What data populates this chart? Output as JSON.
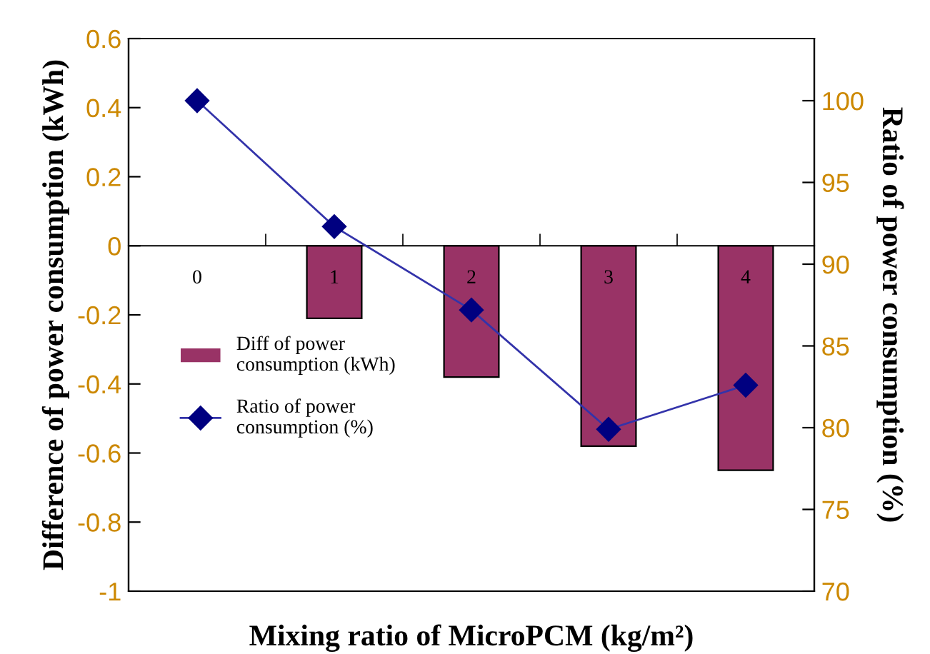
{
  "chart_data": {
    "type": "bar",
    "xlabel": "Mixing ratio of MicroPCM (kg/m²)",
    "ylabel": "Difference of power consumption (kWh)",
    "y2label": "Ratio of power consumption (%)",
    "categories": [
      "0",
      "1",
      "2",
      "3",
      "4"
    ],
    "series": [
      {
        "name": "Diff of power consumption (kWh)",
        "color": "#993366",
        "values": [
          0,
          -0.21,
          -0.38,
          -0.58,
          -0.65
        ]
      },
      {
        "name": "Ratio of power consumption (%)",
        "type": "line",
        "axis": "y2",
        "color": "#3333aa",
        "marker": "diamond",
        "values": [
          100,
          92.3,
          87.2,
          79.9,
          82.6
        ]
      }
    ],
    "ylim": [
      -1,
      0.6
    ],
    "yticks": [
      -1,
      -0.8,
      -0.6,
      -0.4,
      -0.2,
      0,
      0.2,
      0.4,
      0.6
    ],
    "y2lim": [
      70,
      103.8
    ],
    "y2ticks": [
      70,
      75,
      80,
      85,
      90,
      95,
      100
    ],
    "legend": "left",
    "grid": false
  }
}
